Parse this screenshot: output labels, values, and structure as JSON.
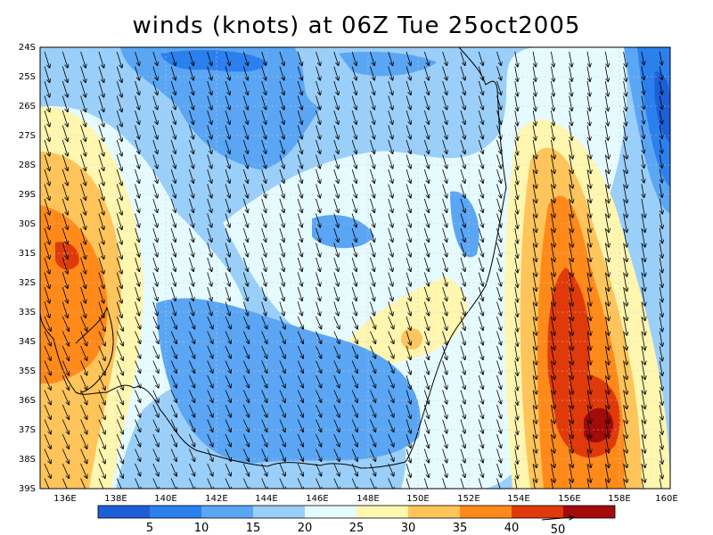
{
  "title": "winds (knots) at 06Z Tue 25oct2005",
  "map": {
    "lon_range": [
      135,
      160
    ],
    "lat_range": [
      -39,
      -24
    ],
    "lat_labels": [
      "24S",
      "25S",
      "26S",
      "27S",
      "28S",
      "29S",
      "30S",
      "31S",
      "32S",
      "33S",
      "34S",
      "35S",
      "36S",
      "37S",
      "38S",
      "39S"
    ],
    "lon_labels": [
      "136E",
      "138E",
      "140E",
      "142E",
      "144E",
      "146E",
      "148E",
      "150E",
      "152E",
      "154E",
      "156E",
      "158E",
      "160E"
    ],
    "grid": true,
    "wind_direction": "north-westerly flow toward south-east"
  },
  "colorbar": {
    "labels": [
      "5",
      "10",
      "15",
      "20",
      "25",
      "30",
      "35",
      "40"
    ],
    "colors": [
      "#1c5fd8",
      "#2b80ee",
      "#5aa6f5",
      "#9acff9",
      "#e6fbff",
      "#fff6b0",
      "#ffc45a",
      "#ff8a1a",
      "#e03a0a",
      "#a30a0a"
    ],
    "vector_ref_label": "50"
  }
}
